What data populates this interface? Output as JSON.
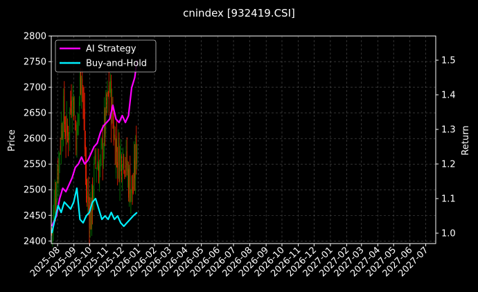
{
  "chart_data": {
    "type": "line",
    "title": "cnindex [932419.CSI]",
    "xlabel": "",
    "ylabel_left": "Price",
    "ylabel_right": "Return",
    "x_ticks": [
      "2025-08",
      "2025-09",
      "2025-10",
      "2025-11",
      "2025-12",
      "2026-01",
      "2026-02",
      "2026-03",
      "2026-04",
      "2026-05",
      "2026-06",
      "2026-07",
      "2026-08",
      "2026-09",
      "2026-10",
      "2026-11",
      "2026-12",
      "2027-01",
      "2027-02",
      "2027-03",
      "2027-04",
      "2027-05",
      "2027-06",
      "2027-07"
    ],
    "x_range": [
      "2025-07-20",
      "2027-07-20"
    ],
    "y_left_ticks": [
      2400,
      2450,
      2500,
      2550,
      2600,
      2650,
      2700,
      2750,
      2800
    ],
    "y_left_range": [
      2395,
      2800
    ],
    "y_right_ticks": [
      1.0,
      1.1,
      1.2,
      1.3,
      1.4,
      1.5
    ],
    "y_right_range": [
      0.97,
      1.57
    ],
    "grid": true,
    "legend_position": "top-left",
    "colors": {
      "up": "#008000",
      "down": "#ff2200",
      "ai_strategy": "#ff00ff",
      "buy_and_hold": "#00f0ff",
      "grid": "#555555",
      "axis": "#ffffff"
    },
    "candles": {
      "date_range": [
        "2025-07-21",
        "2025-12-30"
      ],
      "count": 110,
      "close_path": [
        [
          0,
          2420
        ],
        [
          8,
          2550
        ],
        [
          14,
          2650
        ],
        [
          20,
          2600
        ],
        [
          26,
          2700
        ],
        [
          32,
          2600
        ],
        [
          38,
          2750
        ],
        [
          44,
          2500
        ],
        [
          50,
          2450
        ],
        [
          56,
          2560
        ],
        [
          62,
          2540
        ],
        [
          68,
          2630
        ],
        [
          74,
          2700
        ],
        [
          80,
          2600
        ],
        [
          86,
          2560
        ],
        [
          92,
          2580
        ],
        [
          98,
          2520
        ],
        [
          104,
          2500
        ],
        [
          109,
          2600
        ]
      ]
    },
    "series": [
      {
        "name": "AI Strategy",
        "axis": "right",
        "points": [
          [
            0,
            1.02
          ],
          [
            6,
            1.05
          ],
          [
            10,
            1.1
          ],
          [
            14,
            1.13
          ],
          [
            18,
            1.12
          ],
          [
            22,
            1.14
          ],
          [
            26,
            1.16
          ],
          [
            30,
            1.19
          ],
          [
            34,
            1.2
          ],
          [
            38,
            1.22
          ],
          [
            42,
            1.2
          ],
          [
            46,
            1.21
          ],
          [
            50,
            1.23
          ],
          [
            54,
            1.25
          ],
          [
            58,
            1.26
          ],
          [
            62,
            1.29
          ],
          [
            66,
            1.31
          ],
          [
            70,
            1.32
          ],
          [
            74,
            1.33
          ],
          [
            78,
            1.37
          ],
          [
            82,
            1.33
          ],
          [
            86,
            1.32
          ],
          [
            90,
            1.34
          ],
          [
            94,
            1.32
          ],
          [
            98,
            1.34
          ],
          [
            102,
            1.42
          ],
          [
            106,
            1.45
          ],
          [
            109,
            1.5
          ]
        ]
      },
      {
        "name": "Buy-and-Hold",
        "axis": "right",
        "points": [
          [
            0,
            1.0
          ],
          [
            4,
            1.04
          ],
          [
            8,
            1.08
          ],
          [
            12,
            1.06
          ],
          [
            16,
            1.09
          ],
          [
            20,
            1.08
          ],
          [
            24,
            1.07
          ],
          [
            28,
            1.09
          ],
          [
            32,
            1.13
          ],
          [
            36,
            1.04
          ],
          [
            40,
            1.03
          ],
          [
            44,
            1.05
          ],
          [
            48,
            1.06
          ],
          [
            52,
            1.09
          ],
          [
            56,
            1.1
          ],
          [
            60,
            1.07
          ],
          [
            64,
            1.04
          ],
          [
            68,
            1.05
          ],
          [
            72,
            1.04
          ],
          [
            76,
            1.06
          ],
          [
            80,
            1.04
          ],
          [
            84,
            1.05
          ],
          [
            88,
            1.03
          ],
          [
            92,
            1.02
          ],
          [
            96,
            1.03
          ],
          [
            100,
            1.04
          ],
          [
            104,
            1.05
          ],
          [
            109,
            1.06
          ]
        ]
      }
    ]
  }
}
